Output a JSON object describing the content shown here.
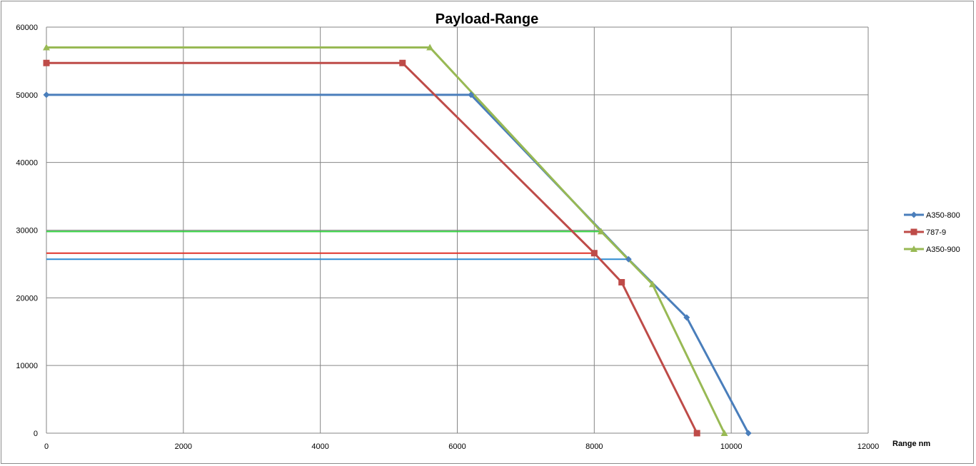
{
  "chart_data": {
    "type": "line",
    "title": "Payload-Range",
    "xlabel": "Range nm",
    "ylabel": "",
    "xlim": [
      0,
      12000
    ],
    "ylim": [
      0,
      60000
    ],
    "xticks": [
      0,
      2000,
      4000,
      6000,
      8000,
      10000,
      12000
    ],
    "yticks": [
      0,
      10000,
      20000,
      30000,
      40000,
      50000,
      60000
    ],
    "grid": true,
    "legend_position": "right",
    "series": [
      {
        "name": "A350-800",
        "color": "#4a7ebb",
        "marker": "diamond",
        "x": [
          0,
          6200,
          8500,
          9350,
          10250
        ],
        "y": [
          50000,
          50000,
          25700,
          17100,
          0
        ]
      },
      {
        "name": "787-9",
        "color": "#be4b48",
        "marker": "square",
        "x": [
          0,
          5200,
          8000,
          8400,
          9500
        ],
        "y": [
          54700,
          54700,
          26600,
          22300,
          0
        ]
      },
      {
        "name": "A350-900",
        "color": "#98b954",
        "marker": "triangle",
        "x": [
          0,
          5600,
          8100,
          8850,
          9900
        ],
        "y": [
          57000,
          57000,
          29800,
          22000,
          0
        ]
      }
    ],
    "reference_lines": [
      {
        "color": "#2e8bd1",
        "x": [
          0,
          8500
        ],
        "y": [
          25700,
          25700
        ]
      },
      {
        "color": "#e0342a",
        "x": [
          0,
          8000
        ],
        "y": [
          26600,
          26600
        ]
      },
      {
        "color": "#2ecc3c",
        "x": [
          0,
          8100
        ],
        "y": [
          29800,
          29800
        ]
      }
    ]
  }
}
